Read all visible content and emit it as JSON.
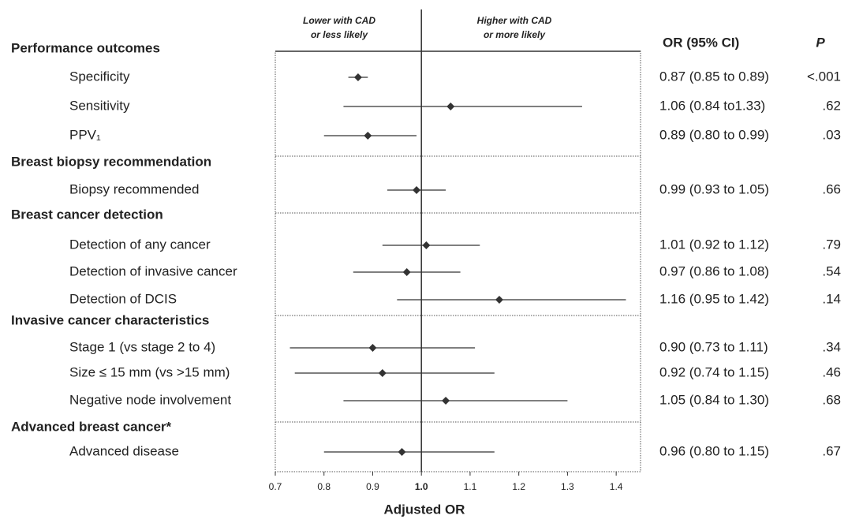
{
  "chart_data": {
    "type": "forest",
    "header_left": [
      "Lower with CAD",
      "or less likely"
    ],
    "header_right": [
      "Higher with CAD",
      "or more likely"
    ],
    "ci_header": "OR (95% CI)",
    "p_header": "P",
    "x_label": "Adjusted OR",
    "xlim": [
      0.7,
      1.45
    ],
    "xticks": [
      0.7,
      0.8,
      0.9,
      {
        "value": 1,
        "label": "1.0"
      },
      1.1,
      1.2,
      1.3,
      1.4
    ],
    "reference": 1,
    "groups": [
      {
        "name": "Performance outcomes",
        "rows": [
          {
            "label": "Specificity",
            "or": 0.87,
            "lower": 0.85,
            "upper": 0.89,
            "ci_label": "0.87 (0.85 to 0.89)",
            "p": "<.001"
          },
          {
            "label": "Sensitivity",
            "or": 1.06,
            "lower": 0.84,
            "upper": 1.33,
            "ci_label": "1.06 (0.84 to1.33)",
            "p": ".62"
          },
          {
            "label": "PPV₁",
            "or": 0.89,
            "lower": 0.8,
            "upper": 0.99,
            "ci_label": "0.89 (0.80 to 0.99)",
            "p": ".03"
          }
        ]
      },
      {
        "name": "Breast biopsy recommendation",
        "rows": [
          {
            "label": "Biopsy recommended",
            "or": 0.99,
            "lower": 0.93,
            "upper": 1.05,
            "ci_label": "0.99 (0.93 to 1.05)",
            "p": ".66"
          }
        ]
      },
      {
        "name": "Breast cancer detection",
        "rows": [
          {
            "label": "Detection of any cancer",
            "or": 1.01,
            "lower": 0.92,
            "upper": 1.12,
            "ci_label": "1.01 (0.92 to 1.12)",
            "p": ".79"
          },
          {
            "label": "Detection of invasive cancer",
            "or": 0.97,
            "lower": 0.86,
            "upper": 1.08,
            "ci_label": "0.97 (0.86 to 1.08)",
            "p": ".54"
          },
          {
            "label": "Detection of DCIS",
            "or": 1.16,
            "lower": 0.95,
            "upper": 1.42,
            "ci_label": "1.16 (0.95 to 1.42)",
            "p": ".14"
          }
        ]
      },
      {
        "name": "Invasive cancer characteristics",
        "rows": [
          {
            "label": "Stage 1 (vs stage 2 to 4)",
            "or": 0.9,
            "lower": 0.73,
            "upper": 1.11,
            "ci_label": "0.90 (0.73 to 1.11)",
            "p": ".34"
          },
          {
            "label": "Size ≤ 15 mm (vs >15 mm)",
            "or": 0.92,
            "lower": 0.74,
            "upper": 1.15,
            "ci_label": "0.92 (0.74 to 1.15)",
            "p": ".46"
          },
          {
            "label": "Negative node involvement",
            "or": 1.05,
            "lower": 0.84,
            "upper": 1.3,
            "ci_label": "1.05 (0.84 to 1.30)",
            "p": ".68"
          }
        ]
      },
      {
        "name": "Advanced breast cancer*",
        "rows": [
          {
            "label": "Advanced disease",
            "or": 0.96,
            "lower": 0.8,
            "upper": 1.15,
            "ci_label": "0.96 (0.80 to 1.15)",
            "p": ".67"
          }
        ]
      }
    ]
  }
}
